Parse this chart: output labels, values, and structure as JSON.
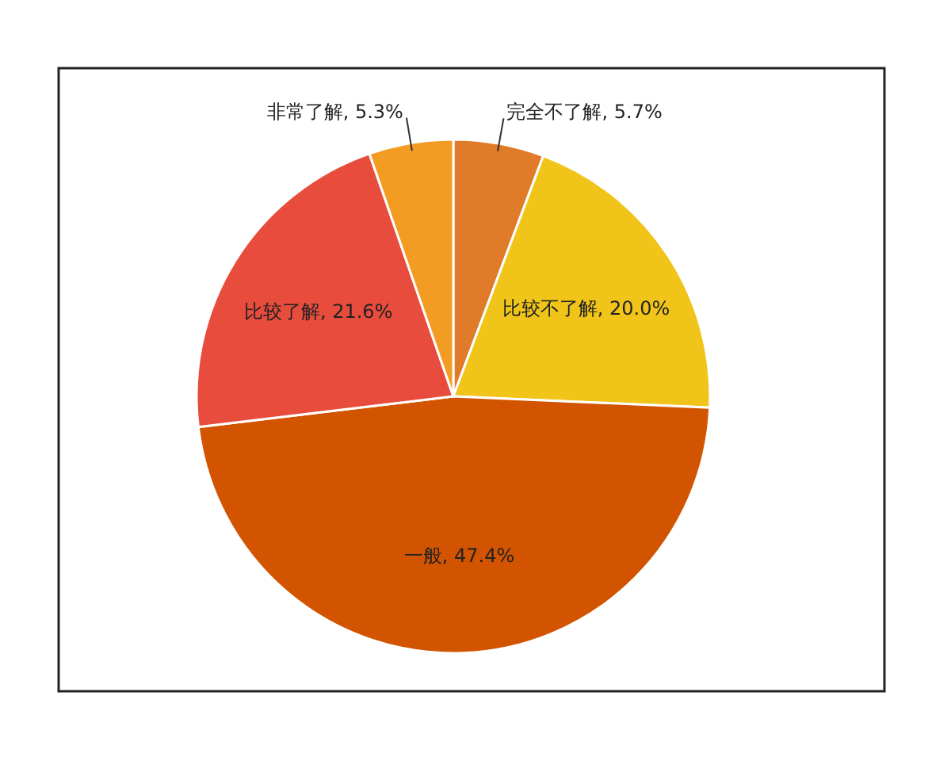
{
  "chart_data": {
    "type": "pie",
    "categories": [
      "完全不了解",
      "比较不了解",
      "一般",
      "比较了解",
      "非常了解"
    ],
    "values": [
      5.7,
      20.0,
      47.4,
      21.6,
      5.3
    ],
    "colors": [
      "#e07b2a",
      "#f0c419",
      "#d35400",
      "#e74c3c",
      "#f39c24"
    ],
    "value_labels": [
      "5.7%",
      "20.0%",
      "47.4%",
      "21.6%",
      "5.3%"
    ]
  }
}
